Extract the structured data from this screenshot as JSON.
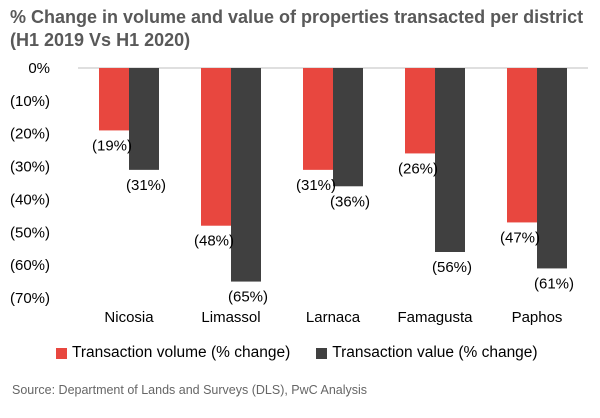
{
  "title": "% Change in volume and value of properties transacted per district (H1 2019 Vs H1 2020)",
  "source": "Source: Department of Lands and Surveys (DLS), PwC Analysis",
  "colors": {
    "volume": "#e8473f",
    "value": "#404040",
    "axis": "#bfbfbf"
  },
  "chart_data": {
    "type": "bar",
    "categories": [
      "Nicosia",
      "Limassol",
      "Larnaca",
      "Famagusta",
      "Paphos"
    ],
    "series": [
      {
        "name": "Transaction volume (% change)",
        "values": [
          -19,
          -48,
          -31,
          -26,
          -47
        ],
        "labels": [
          "(19%)",
          "(48%)",
          "(31%)",
          "(26%)",
          "(47%)"
        ]
      },
      {
        "name": "Transaction value (% change)",
        "values": [
          -31,
          -65,
          -36,
          -56,
          -61
        ],
        "labels": [
          "(31%)",
          "(65%)",
          "(36%)",
          "(56%)",
          "(61%)"
        ]
      }
    ],
    "ylim": [
      -70,
      0
    ],
    "yticks": [
      0,
      -10,
      -20,
      -30,
      -40,
      -50,
      -60,
      -70
    ],
    "ytick_labels": [
      "0%",
      "(10%)",
      "(20%)",
      "(30%)",
      "(40%)",
      "(50%)",
      "(60%)",
      "(70%)"
    ],
    "legend": "bottom",
    "grid": false
  }
}
